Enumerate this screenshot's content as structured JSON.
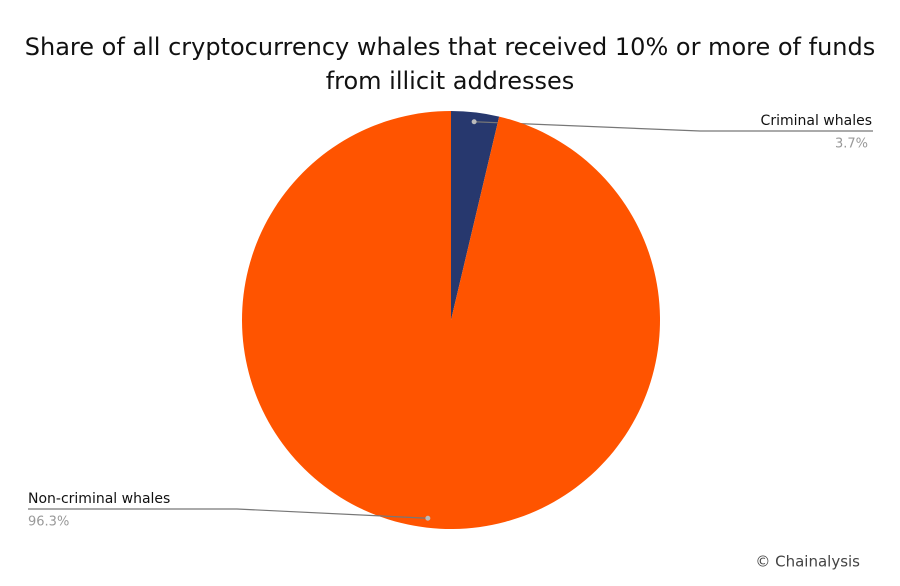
{
  "chart_data": {
    "type": "pie",
    "title": "Share of all cryptocurrency whales that received 10% or more of funds from illicit addresses",
    "categories": [
      "Criminal whales",
      "Non-criminal whales"
    ],
    "values": [
      3.7,
      96.3
    ],
    "value_labels": [
      "3.7%",
      "96.3%"
    ],
    "colors": [
      "#27386e",
      "#ff5400"
    ],
    "source": "© Chainalysis"
  }
}
